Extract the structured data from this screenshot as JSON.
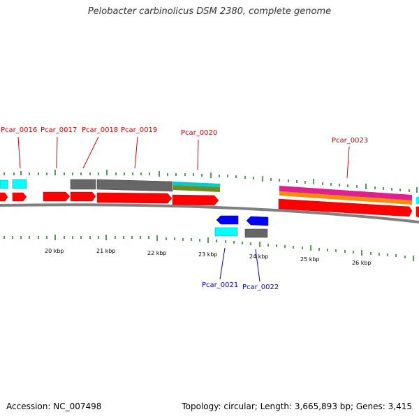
{
  "title": "Pelobacter carbinolicus DSM 2380, complete genome",
  "accession": "Accession: NC_007498",
  "summary": "Topology: circular; Length: 3,665,893 bp; Genes: 3,415",
  "scale_labels": [
    "20 kbp",
    "21 kbp",
    "22 kbp",
    "23 kbp",
    "24 kbp",
    "25 kbp",
    "26 kbp"
  ],
  "forward_genes": [
    "Pcar_0016",
    "Pcar_0017",
    "Pcar_0018",
    "Pcar_0019",
    "Pcar_0020",
    "Pcar_0023"
  ],
  "reverse_genes": [
    "Pcar_0021",
    "Pcar_0022"
  ],
  "colors": {
    "forward_gene": "#ff0000",
    "reverse_gene": "#0000ff",
    "backbone": "#808080",
    "tick": "#1a7a1a",
    "feature_cyan": "#00ffff",
    "feature_grey": "#666666",
    "feature_green": "#6b8e23",
    "feature_orange": "#ff8c00",
    "feature_magenta": "#e0208f"
  }
}
